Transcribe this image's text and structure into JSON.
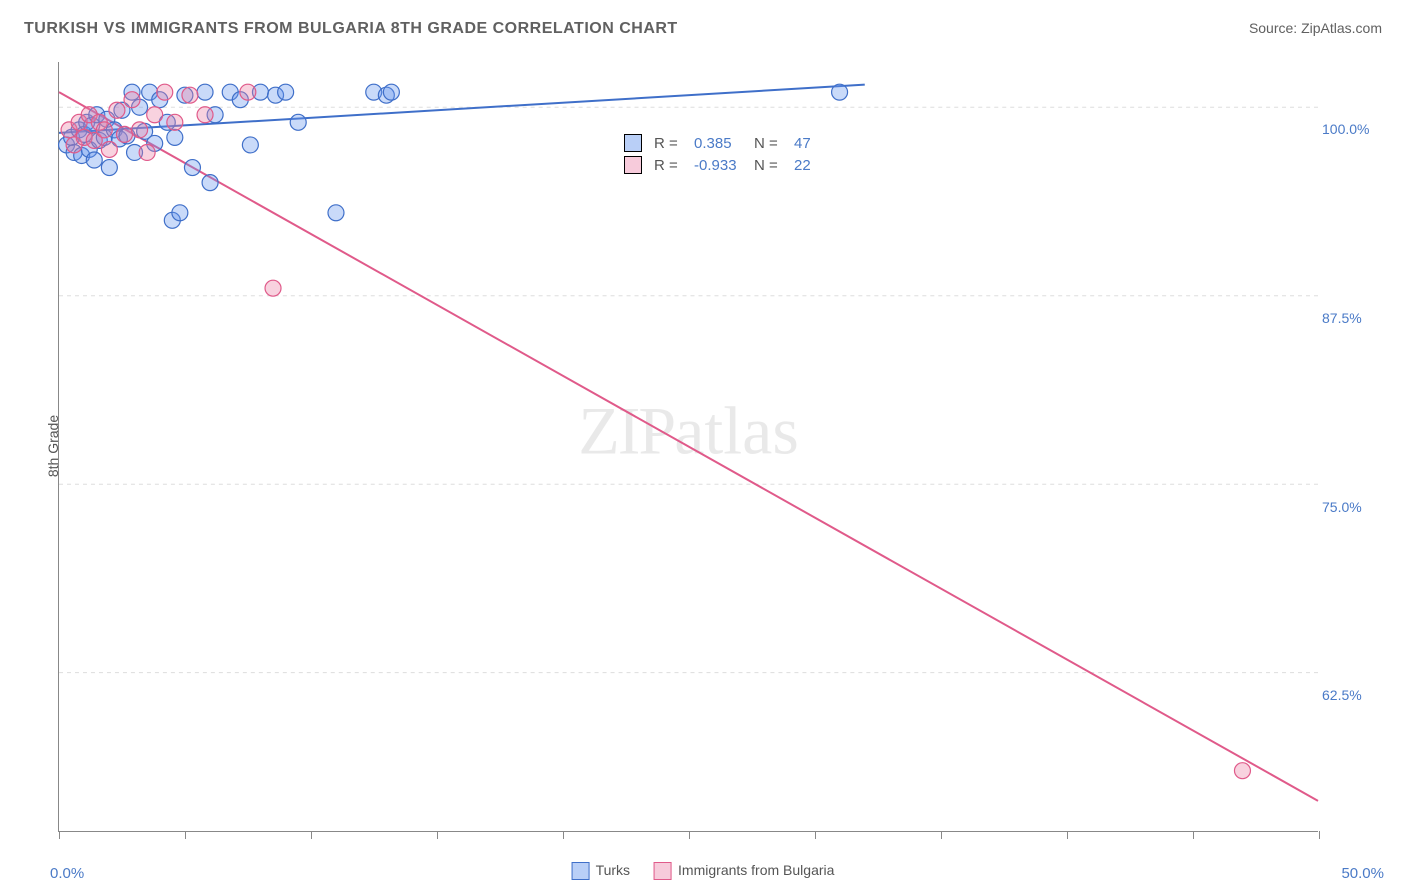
{
  "title": "TURKISH VS IMMIGRANTS FROM BULGARIA 8TH GRADE CORRELATION CHART",
  "source_label": "Source: ",
  "source_name": "ZipAtlas.com",
  "ylabel": "8th Grade",
  "watermark": "ZIPatlas",
  "chart": {
    "type": "scatter-with-regression",
    "background_color": "#ffffff",
    "grid_color": "#dddddd",
    "axis_color": "#888888",
    "tick_label_color": "#4a7ac7",
    "xlim": [
      0,
      50
    ],
    "ylim": [
      52,
      103
    ],
    "xticks": [
      0,
      5,
      10,
      15,
      20,
      25,
      30,
      35,
      40,
      45,
      50
    ],
    "xtick_labels": {
      "0": "0.0%",
      "50": "50.0%"
    },
    "yticks": [
      62.5,
      75.0,
      87.5,
      100.0
    ],
    "ytick_labels": [
      "62.5%",
      "75.0%",
      "87.5%",
      "100.0%"
    ],
    "marker_radius": 8,
    "marker_border_width": 1.2,
    "line_width": 2,
    "series": [
      {
        "name": "Turks",
        "color_fill": "rgba(99,148,238,0.35)",
        "color_stroke": "#3f6fc9",
        "R": "0.385",
        "N": "47",
        "regression": {
          "x1": 0,
          "y1": 98.3,
          "x2": 32,
          "y2": 101.5
        },
        "points": [
          [
            0.3,
            97.5
          ],
          [
            0.5,
            98.0
          ],
          [
            0.6,
            97.0
          ],
          [
            0.8,
            98.5
          ],
          [
            0.9,
            96.8
          ],
          [
            1.0,
            98.2
          ],
          [
            1.1,
            99.0
          ],
          [
            1.2,
            97.2
          ],
          [
            1.3,
            98.8
          ],
          [
            1.4,
            96.5
          ],
          [
            1.5,
            99.5
          ],
          [
            1.6,
            97.8
          ],
          [
            1.8,
            98.0
          ],
          [
            1.9,
            99.2
          ],
          [
            2.0,
            96.0
          ],
          [
            2.2,
            98.5
          ],
          [
            2.4,
            97.9
          ],
          [
            2.5,
            99.8
          ],
          [
            2.7,
            98.1
          ],
          [
            2.9,
            101.0
          ],
          [
            3.0,
            97.0
          ],
          [
            3.2,
            100.0
          ],
          [
            3.4,
            98.4
          ],
          [
            3.6,
            101.0
          ],
          [
            3.8,
            97.6
          ],
          [
            4.0,
            100.5
          ],
          [
            4.3,
            99.0
          ],
          [
            4.6,
            98.0
          ],
          [
            5.0,
            100.8
          ],
          [
            5.3,
            96.0
          ],
          [
            4.5,
            92.5
          ],
          [
            4.8,
            93.0
          ],
          [
            5.8,
            101.0
          ],
          [
            6.2,
            99.5
          ],
          [
            6.8,
            101.0
          ],
          [
            7.2,
            100.5
          ],
          [
            7.6,
            97.5
          ],
          [
            8.0,
            101.0
          ],
          [
            8.6,
            100.8
          ],
          [
            9.0,
            101.0
          ],
          [
            9.5,
            99.0
          ],
          [
            11.0,
            93.0
          ],
          [
            12.5,
            101.0
          ],
          [
            13.0,
            100.8
          ],
          [
            13.2,
            101.0
          ],
          [
            6.0,
            95.0
          ],
          [
            31.0,
            101.0
          ]
        ]
      },
      {
        "name": "Immigrants from Bulgaria",
        "color_fill": "rgba(236,125,164,0.35)",
        "color_stroke": "#e05a8a",
        "R": "-0.933",
        "N": "22",
        "regression": {
          "x1": 0,
          "y1": 101.0,
          "x2": 50,
          "y2": 54.0
        },
        "points": [
          [
            0.4,
            98.5
          ],
          [
            0.6,
            97.5
          ],
          [
            0.8,
            99.0
          ],
          [
            1.0,
            98.0
          ],
          [
            1.2,
            99.5
          ],
          [
            1.4,
            97.8
          ],
          [
            1.6,
            99.0
          ],
          [
            1.8,
            98.5
          ],
          [
            2.0,
            97.2
          ],
          [
            2.3,
            99.8
          ],
          [
            2.6,
            98.2
          ],
          [
            2.9,
            100.5
          ],
          [
            3.2,
            98.5
          ],
          [
            3.5,
            97.0
          ],
          [
            3.8,
            99.5
          ],
          [
            4.2,
            101.0
          ],
          [
            4.6,
            99.0
          ],
          [
            5.2,
            100.8
          ],
          [
            5.8,
            99.5
          ],
          [
            7.5,
            101.0
          ],
          [
            8.5,
            88.0
          ],
          [
            47.0,
            56.0
          ]
        ]
      }
    ],
    "bottom_legend": [
      {
        "swatch": "blue",
        "label": "Turks"
      },
      {
        "swatch": "pink",
        "label": "Immigrants from Bulgaria"
      }
    ]
  }
}
